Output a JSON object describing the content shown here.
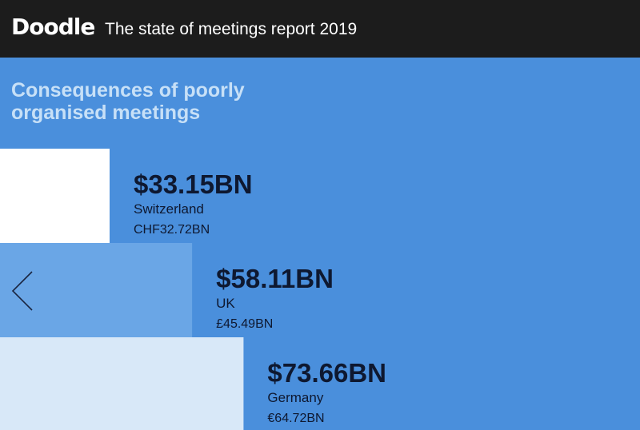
{
  "header": {
    "logo": "Doodle",
    "report_title": "The state of meetings report 2019"
  },
  "main": {
    "heading": "Consequences of poorly organised meetings"
  },
  "nav": {
    "prev_icon": "chevron-left-icon"
  },
  "colors": {
    "background": "#4a8fdc",
    "topbar": "#1c1c1c",
    "heading": "#c7e0f7",
    "bar_switzerland": "#ffffff",
    "bar_uk": "#6aa6e6",
    "bar_germany": "#d8e8f8"
  },
  "chart_data": {
    "type": "bar",
    "orientation": "horizontal",
    "categories": [
      "Switzerland",
      "UK",
      "Germany"
    ],
    "values": [
      33.15,
      58.11,
      73.66
    ],
    "value_labels": [
      "$33.15BN",
      "$58.11BN",
      "$73.66BN"
    ],
    "local_currency_labels": [
      "CHF32.72BN",
      "£45.49BN",
      "€64.72BN"
    ],
    "title": "Consequences of poorly organised meetings",
    "xlabel": "",
    "ylabel": "",
    "grid": false,
    "legend": "none"
  }
}
